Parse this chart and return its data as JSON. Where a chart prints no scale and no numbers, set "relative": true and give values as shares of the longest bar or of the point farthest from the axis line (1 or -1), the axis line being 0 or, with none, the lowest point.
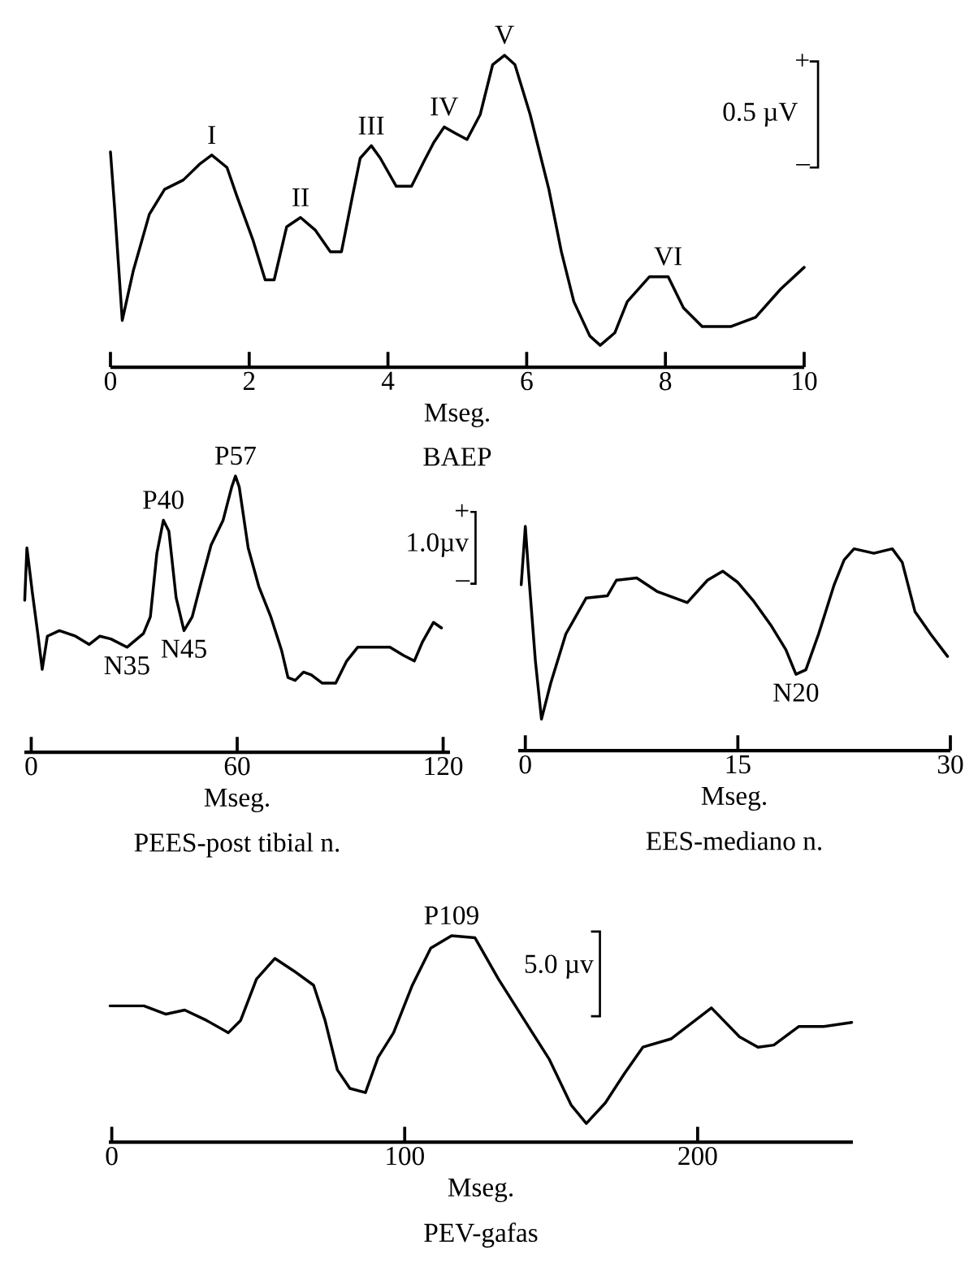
{
  "chart_data": [
    {
      "type": "line",
      "relative": true,
      "title": "BAEP",
      "xlabel": "Mseg.",
      "color": "#000000",
      "xlim": [
        0,
        10
      ],
      "xticks": [
        0,
        2,
        4,
        6,
        8,
        10
      ],
      "x": [
        0,
        0.06,
        0.17,
        0.33,
        0.56,
        0.78,
        1.05,
        1.28,
        1.46,
        1.68,
        1.82,
        2.05,
        2.23,
        2.36,
        2.54,
        2.74,
        2.95,
        3.17,
        3.33,
        3.49,
        3.6,
        3.76,
        3.89,
        4.12,
        4.34,
        4.52,
        4.66,
        4.81,
        4.97,
        5.14,
        5.33,
        5.51,
        5.68,
        5.83,
        6.05,
        6.32,
        6.5,
        6.68,
        6.91,
        7.06,
        7.27,
        7.45,
        7.77,
        8.04,
        8.26,
        8.53,
        8.94,
        9.3,
        9.66,
        10
      ],
      "values": [
        0.69,
        0.51,
        0.15,
        0.31,
        0.49,
        0.57,
        0.6,
        0.65,
        0.68,
        0.64,
        0.55,
        0.41,
        0.28,
        0.28,
        0.45,
        0.48,
        0.44,
        0.37,
        0.37,
        0.55,
        0.67,
        0.71,
        0.67,
        0.58,
        0.58,
        0.66,
        0.72,
        0.77,
        0.75,
        0.73,
        0.81,
        0.97,
        1.0,
        0.97,
        0.81,
        0.57,
        0.37,
        0.21,
        0.1,
        0.07,
        0.11,
        0.21,
        0.29,
        0.29,
        0.19,
        0.13,
        0.13,
        0.16,
        0.25,
        0.32
      ],
      "annotations": [
        {
          "text": "I",
          "x": 1.46,
          "y": 0.68
        },
        {
          "text": "II",
          "x": 2.74,
          "y": 0.48
        },
        {
          "text": "III",
          "x": 3.76,
          "y": 0.71
        },
        {
          "text": "IV",
          "x": 4.81,
          "y": 0.77
        },
        {
          "text": "V",
          "x": 5.68,
          "y": 1.0
        },
        {
          "text": "VI",
          "x": 8.04,
          "y": 0.29
        },
        "+",
        "0.5 µV",
        "–"
      ]
    },
    {
      "type": "line",
      "relative": true,
      "title": "PEES-post tibial n.",
      "xlabel": "Mseg.",
      "color": "#000000",
      "xlim": [
        -2,
        122
      ],
      "xticks": [
        0,
        60,
        120
      ],
      "x": [
        -1.9,
        -1.26,
        0.3,
        1.9,
        3.2,
        4.7,
        8.2,
        12.9,
        16.9,
        20,
        23.2,
        27.9,
        32.7,
        34.7,
        36.6,
        38.5,
        40.1,
        42.2,
        44.5,
        46.9,
        49.6,
        52.4,
        55.9,
        58.4,
        59.5,
        60.6,
        63.2,
        66.3,
        69.8,
        72.9,
        74.8,
        76.9,
        79.3,
        81.6,
        84.8,
        88.7,
        91.9,
        95.1,
        99.8,
        104.5,
        108.5,
        111.6,
        114,
        117.2,
        119.5
      ],
      "values": [
        0.55,
        0.74,
        0.58,
        0.43,
        0.3,
        0.42,
        0.44,
        0.42,
        0.39,
        0.42,
        0.41,
        0.38,
        0.43,
        0.49,
        0.72,
        0.84,
        0.8,
        0.56,
        0.44,
        0.49,
        0.62,
        0.75,
        0.84,
        0.96,
        1.0,
        0.96,
        0.74,
        0.6,
        0.49,
        0.37,
        0.27,
        0.26,
        0.29,
        0.28,
        0.25,
        0.25,
        0.33,
        0.38,
        0.38,
        0.38,
        0.35,
        0.33,
        0.4,
        0.47,
        0.45
      ],
      "annotations": [
        {
          "text": "P40",
          "x": 38.5,
          "y": 0.84
        },
        {
          "text": "P57",
          "x": 59.5,
          "y": 1.0
        },
        {
          "text": "N35",
          "x": 27.9,
          "y": 0.38
        },
        {
          "text": "N45",
          "x": 44.5,
          "y": 0.44
        },
        "+",
        "1.0µv",
        "–"
      ]
    },
    {
      "type": "line",
      "relative": true,
      "title": "EES-mediano n.",
      "xlabel": "Mseg.",
      "color": "#000000",
      "xlim": [
        -0.5,
        30
      ],
      "xticks": [
        0,
        15,
        30
      ],
      "x": [
        -0.29,
        0,
        0.21,
        0.71,
        1.14,
        1.79,
        2.86,
        4.29,
        5.79,
        6.43,
        7.86,
        9.29,
        11.43,
        12.86,
        13.93,
        15,
        16.07,
        17.32,
        18.39,
        19.1,
        19.8,
        20.7,
        21.8,
        22.5,
        23.2,
        24.6,
        25.9,
        26.6,
        27.5,
        28.6,
        29.8
      ],
      "values": [
        0.74,
        1.0,
        0.81,
        0.4,
        0.14,
        0.3,
        0.52,
        0.68,
        0.69,
        0.76,
        0.77,
        0.71,
        0.66,
        0.76,
        0.8,
        0.75,
        0.67,
        0.56,
        0.45,
        0.34,
        0.36,
        0.52,
        0.74,
        0.85,
        0.9,
        0.88,
        0.9,
        0.84,
        0.62,
        0.52,
        0.42
      ],
      "annotations": [
        {
          "text": "N20",
          "x": 19.1,
          "y": 0.34
        }
      ]
    },
    {
      "type": "line",
      "relative": true,
      "title": "PEV-gafas",
      "xlabel": "Mseg.",
      "color": "#000000",
      "xlim": [
        -1,
        253
      ],
      "xticks": [
        0,
        100,
        200
      ],
      "x": [
        -0.6,
        11,
        18.5,
        24.9,
        32.3,
        39.8,
        44,
        49.4,
        55.7,
        62.1,
        68.9,
        72.8,
        77,
        81.3,
        86.6,
        90.9,
        96.2,
        102.6,
        108.9,
        116,
        124,
        132,
        140.9,
        149.4,
        156.8,
        162,
        168.5,
        174.9,
        181.3,
        190.9,
        204.7,
        214.3,
        220.6,
        226,
        234.5,
        243,
        252.6
      ],
      "values": [
        0.66,
        0.66,
        0.62,
        0.64,
        0.59,
        0.53,
        0.59,
        0.79,
        0.89,
        0.83,
        0.76,
        0.59,
        0.35,
        0.26,
        0.24,
        0.41,
        0.53,
        0.76,
        0.94,
        1.0,
        0.99,
        0.79,
        0.59,
        0.4,
        0.18,
        0.09,
        0.19,
        0.33,
        0.46,
        0.5,
        0.65,
        0.51,
        0.46,
        0.47,
        0.56,
        0.56,
        0.58
      ],
      "annotations": [
        {
          "text": "P109",
          "x": 116,
          "y": 1.0
        },
        "5.0 µv"
      ]
    }
  ]
}
